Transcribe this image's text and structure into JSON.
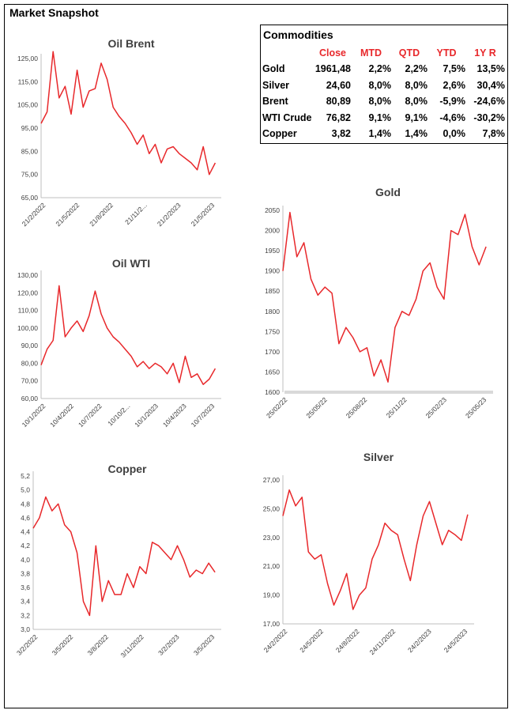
{
  "page_title": "Market Snapshot",
  "accent_color": "#e8282b",
  "commodities": {
    "title": "Commodities",
    "columns": [
      "Close",
      "MTD",
      "QTD",
      "YTD",
      "1Y R"
    ],
    "rows": [
      {
        "name": "Gold",
        "values": [
          "1961,48",
          "2,2%",
          "2,2%",
          "7,5%",
          "13,5%"
        ]
      },
      {
        "name": "Silver",
        "values": [
          "24,60",
          "8,0%",
          "8,0%",
          "2,6%",
          "30,4%"
        ]
      },
      {
        "name": "Brent",
        "values": [
          "80,89",
          "8,0%",
          "8,0%",
          "-5,9%",
          "-24,6%"
        ]
      },
      {
        "name": "WTI Crude",
        "values": [
          "76,82",
          "9,1%",
          "9,1%",
          "-4,6%",
          "-30,2%"
        ]
      },
      {
        "name": "Copper",
        "values": [
          "3,82",
          "1,4%",
          "1,4%",
          "0,0%",
          "7,8%"
        ]
      }
    ]
  },
  "chart_data": [
    {
      "id": "oil-brent",
      "type": "line",
      "title": "Oil Brent",
      "ylim": [
        65,
        125
      ],
      "yticks": [
        65,
        75,
        85,
        95,
        105,
        115,
        125
      ],
      "ydecimals": 2,
      "xtick_labels": [
        "21/2/2022",
        "21/5/2022",
        "21/8/2022",
        "21/11/2...",
        "21/2/2023",
        "21/5/2023"
      ],
      "xlim": [
        0,
        30
      ],
      "series": [
        {
          "x": [
            0,
            1,
            2,
            3,
            4,
            5,
            6,
            7,
            8,
            9,
            10,
            11,
            12,
            13,
            14,
            15,
            16,
            17,
            18,
            19,
            20,
            21,
            22,
            23,
            24,
            25,
            26,
            27,
            28,
            29
          ],
          "y": [
            97,
            102,
            128,
            108,
            113,
            101,
            120,
            104,
            111,
            112,
            123,
            116,
            104,
            100,
            97,
            93,
            88,
            92,
            84,
            88,
            80,
            86,
            87,
            84,
            82,
            80,
            77,
            87,
            75,
            80
          ]
        }
      ]
    },
    {
      "id": "oil-wti",
      "type": "line",
      "title": "Oil WTI",
      "ylim": [
        60,
        130
      ],
      "yticks": [
        60,
        70,
        80,
        90,
        100,
        110,
        120,
        130
      ],
      "ydecimals": 2,
      "xtick_labels": [
        "10/1/2022",
        "10/4/2022",
        "10/7/2022",
        "10/10/2...",
        "10/1/2023",
        "10/4/2023",
        "10/7/2023"
      ],
      "xlim": [
        0,
        30
      ],
      "series": [
        {
          "x": [
            0,
            1,
            2,
            3,
            4,
            5,
            6,
            7,
            8,
            9,
            10,
            11,
            12,
            13,
            14,
            15,
            16,
            17,
            18,
            19,
            20,
            21,
            22,
            23,
            24,
            25,
            26,
            27,
            28,
            29
          ],
          "y": [
            79,
            88,
            93,
            124,
            95,
            100,
            104,
            98,
            107,
            121,
            108,
            100,
            95,
            92,
            88,
            84,
            78,
            81,
            77,
            80,
            78,
            74,
            80,
            69,
            84,
            72,
            74,
            68,
            71,
            77
          ]
        }
      ]
    },
    {
      "id": "gold",
      "type": "line",
      "title": "Gold",
      "ylim": [
        1600,
        2050
      ],
      "yticks": [
        1600,
        1650,
        1700,
        1750,
        1800,
        1850,
        1900,
        1950,
        2000,
        2050
      ],
      "ydecimals": 0,
      "baseline": 1600,
      "xtick_labels": [
        "25/02/22",
        "25/05/22",
        "25/08/22",
        "25/11/22",
        "25/02/23",
        "25/05/23"
      ],
      "xlim": [
        0,
        30
      ],
      "series": [
        {
          "x": [
            0,
            1,
            2,
            3,
            4,
            5,
            6,
            7,
            8,
            9,
            10,
            11,
            12,
            13,
            14,
            15,
            16,
            17,
            18,
            19,
            20,
            21,
            22,
            23,
            24,
            25,
            26,
            27,
            28,
            29
          ],
          "y": [
            1900,
            2045,
            1935,
            1970,
            1880,
            1840,
            1860,
            1845,
            1720,
            1760,
            1735,
            1700,
            1710,
            1640,
            1680,
            1625,
            1760,
            1800,
            1790,
            1830,
            1900,
            1920,
            1860,
            1830,
            2000,
            1990,
            2040,
            1960,
            1915,
            1960
          ]
        }
      ]
    },
    {
      "id": "copper",
      "type": "line",
      "title": "Copper",
      "ylim": [
        3,
        5.2
      ],
      "yticks": [
        3,
        3.2,
        3.4,
        3.6,
        3.8,
        4,
        4.2,
        4.4,
        4.6,
        4.8,
        5,
        5.2
      ],
      "ydecimals": 1,
      "xtick_labels": [
        "3/2/2022",
        "3/5/2022",
        "3/8/2022",
        "3/11/2022",
        "3/2/2023",
        "3/5/2023"
      ],
      "xlim": [
        0,
        30
      ],
      "series": [
        {
          "x": [
            0,
            1,
            2,
            3,
            4,
            5,
            6,
            7,
            8,
            9,
            10,
            11,
            12,
            13,
            14,
            15,
            16,
            17,
            18,
            19,
            20,
            21,
            22,
            23,
            24,
            25,
            26,
            27,
            28,
            29
          ],
          "y": [
            4.45,
            4.6,
            4.9,
            4.7,
            4.8,
            4.5,
            4.4,
            4.1,
            3.4,
            3.2,
            4.2,
            3.4,
            3.7,
            3.5,
            3.5,
            3.8,
            3.6,
            3.9,
            3.8,
            4.25,
            4.2,
            4.1,
            4.0,
            4.2,
            4.0,
            3.75,
            3.85,
            3.8,
            3.95,
            3.82
          ]
        }
      ]
    },
    {
      "id": "silver",
      "type": "line",
      "title": "Silver",
      "ylim": [
        17,
        27
      ],
      "yticks": [
        17,
        19,
        21,
        23,
        25,
        27
      ],
      "ydecimals": 2,
      "xtick_labels": [
        "24/2/2022",
        "24/5/2022",
        "24/8/2022",
        "24/11/2022",
        "24/2/2023",
        "24/5/2023"
      ],
      "xlim": [
        0,
        30
      ],
      "series": [
        {
          "x": [
            0,
            1,
            2,
            3,
            4,
            5,
            6,
            7,
            8,
            9,
            10,
            11,
            12,
            13,
            14,
            15,
            16,
            17,
            18,
            19,
            20,
            21,
            22,
            23,
            24,
            25,
            26,
            27,
            28,
            29
          ],
          "y": [
            24.5,
            26.3,
            25.2,
            25.8,
            22.0,
            21.5,
            21.8,
            19.8,
            18.3,
            19.3,
            20.5,
            18.0,
            19.0,
            19.5,
            21.5,
            22.5,
            24.0,
            23.5,
            23.2,
            21.5,
            20.0,
            22.5,
            24.5,
            25.5,
            24.0,
            22.5,
            23.5,
            23.2,
            22.8,
            24.6
          ]
        }
      ]
    }
  ]
}
